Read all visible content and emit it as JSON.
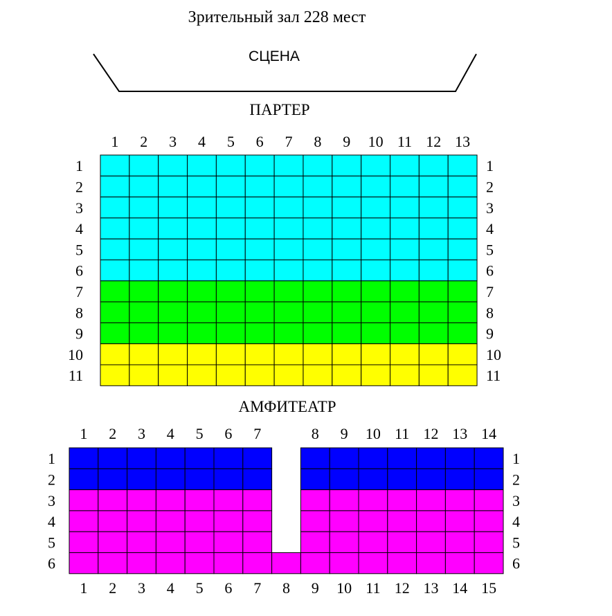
{
  "title": "Зрительный зал 228 мест",
  "stage": {
    "label": "СЦЕНА"
  },
  "parter": {
    "label": "ПАРТЕР",
    "seats_per_row": 13,
    "seat_numbers": [
      "1",
      "2",
      "3",
      "4",
      "5",
      "6",
      "7",
      "8",
      "9",
      "10",
      "11",
      "12",
      "13"
    ],
    "row_numbers": [
      "1",
      "2",
      "3",
      "4",
      "5",
      "6",
      "7",
      "8",
      "9",
      "10",
      "11"
    ],
    "row_colors": [
      "#00ffff",
      "#00ffff",
      "#00ffff",
      "#00ffff",
      "#00ffff",
      "#00ffff",
      "#00ff00",
      "#00ff00",
      "#00ff00",
      "#ffff00",
      "#ffff00"
    ]
  },
  "amfiteatr": {
    "label": "АМФИТЕАТР",
    "top_seat_numbers": [
      "1",
      "2",
      "3",
      "4",
      "5",
      "6",
      "7",
      "8",
      "9",
      "10",
      "11",
      "12",
      "13",
      "14"
    ],
    "bottom_seat_numbers": [
      "1",
      "2",
      "3",
      "4",
      "5",
      "6",
      "7",
      "8",
      "9",
      "10",
      "11",
      "12",
      "13",
      "14",
      "15"
    ],
    "row_numbers": [
      "1",
      "2",
      "3",
      "4",
      "5",
      "6"
    ],
    "row_colors": [
      "#0000ff",
      "#0000ff",
      "#ff00ff",
      "#ff00ff",
      "#ff00ff",
      "#ff00ff"
    ],
    "aisle_rows": 5
  }
}
